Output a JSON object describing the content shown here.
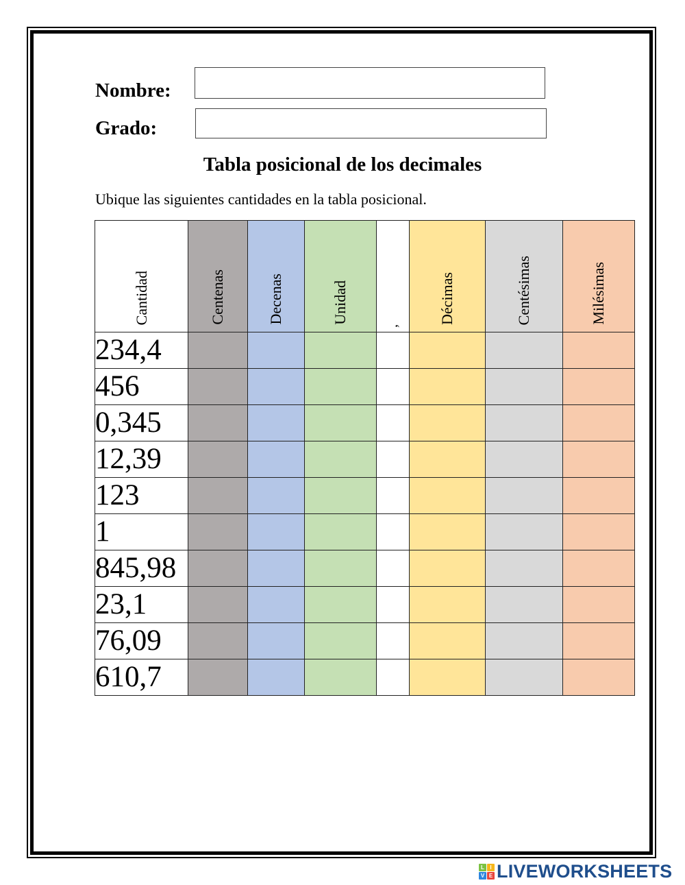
{
  "header": {
    "nombre_label": "Nombre:",
    "nombre_value": "",
    "grado_label": "Grado:",
    "grado_value": ""
  },
  "title": "Tabla posicional de los decimales",
  "instructions": "Ubique las siguientes cantidades en la tabla posicional.",
  "table": {
    "columns": [
      {
        "label": "Cantidad",
        "color": "#ffffff"
      },
      {
        "label": "Centenas",
        "color": "#aeaaaa"
      },
      {
        "label": "Decenas",
        "color": "#b4c6e7"
      },
      {
        "label": "Unidad",
        "color": "#c5e0b4"
      },
      {
        "label": ",",
        "color": "#ffffff"
      },
      {
        "label": "Décimas",
        "color": "#ffe599"
      },
      {
        "label": "Centésimas",
        "color": "#d9d9d9"
      },
      {
        "label": "Milésimas",
        "color": "#f8cbad"
      }
    ],
    "rows": [
      {
        "cantidad": "234,4"
      },
      {
        "cantidad": "456"
      },
      {
        "cantidad": "0,345"
      },
      {
        "cantidad": "12,39"
      },
      {
        "cantidad": "123"
      },
      {
        "cantidad": "1"
      },
      {
        "cantidad": "845,98"
      },
      {
        "cantidad": "23,1"
      },
      {
        "cantidad": "76,09"
      },
      {
        "cantidad": "610,7"
      }
    ]
  },
  "brand": {
    "tiles": [
      "L",
      "I",
      "V",
      "E"
    ],
    "tile_colors": [
      "#7cc242",
      "#f6b71b",
      "#2e86de",
      "#e8453c"
    ],
    "text": "LIVEWORKSHEETS",
    "color": "#1f4e8c"
  }
}
